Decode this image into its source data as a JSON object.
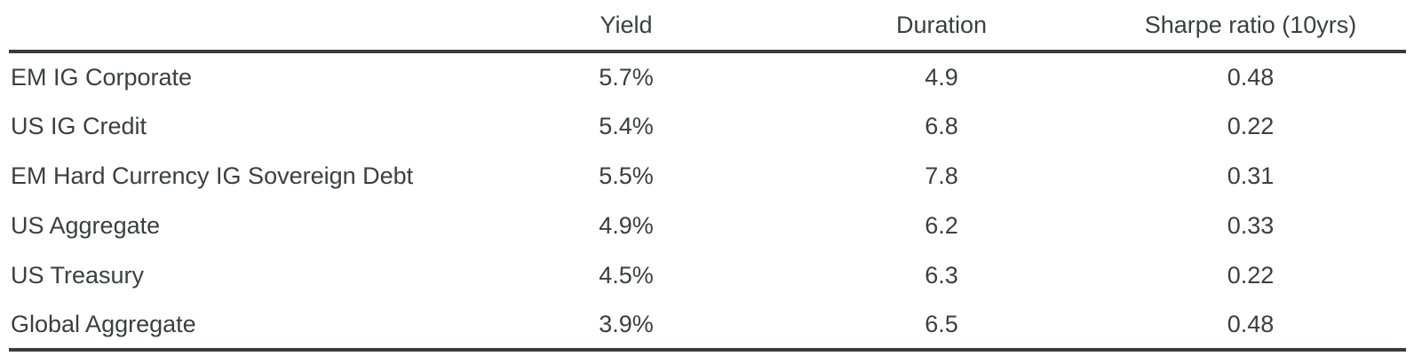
{
  "table": {
    "columns": {
      "label": "",
      "yield": "Yield",
      "duration": "Duration",
      "sharpe": "Sharpe ratio (10yrs)"
    },
    "rows": [
      {
        "label": "EM IG Corporate",
        "yield": "5.7%",
        "duration": "4.9",
        "sharpe": "0.48"
      },
      {
        "label": "US IG Credit",
        "yield": "5.4%",
        "duration": "6.8",
        "sharpe": "0.22"
      },
      {
        "label": "EM Hard Currency IG Sovereign Debt",
        "yield": "5.5%",
        "duration": "7.8",
        "sharpe": "0.31"
      },
      {
        "label": "US Aggregate",
        "yield": "4.9%",
        "duration": "6.2",
        "sharpe": "0.33"
      },
      {
        "label": "US Treasury",
        "yield": "4.5%",
        "duration": "6.3",
        "sharpe": "0.22"
      },
      {
        "label": "Global Aggregate",
        "yield": "3.9%",
        "duration": "6.5",
        "sharpe": "0.48"
      }
    ],
    "colors": {
      "text": "#3c3e41",
      "rule": "#3a3b3c",
      "background": "#ffffff"
    }
  },
  "chart_data": {
    "type": "table",
    "title": "",
    "categories": [
      "EM IG Corporate",
      "US IG Credit",
      "EM Hard Currency IG Sovereign Debt",
      "US Aggregate",
      "US Treasury",
      "Global Aggregate"
    ],
    "series": [
      {
        "name": "Yield",
        "values_pct": [
          5.7,
          5.4,
          5.5,
          4.9,
          4.5,
          3.9
        ],
        "unit": "%"
      },
      {
        "name": "Duration",
        "values": [
          4.9,
          6.8,
          7.8,
          6.2,
          6.3,
          6.5
        ]
      },
      {
        "name": "Sharpe ratio (10yrs)",
        "values": [
          0.48,
          0.22,
          0.31,
          0.33,
          0.22,
          0.48
        ]
      }
    ],
    "legend_position": "none",
    "grid": false
  }
}
